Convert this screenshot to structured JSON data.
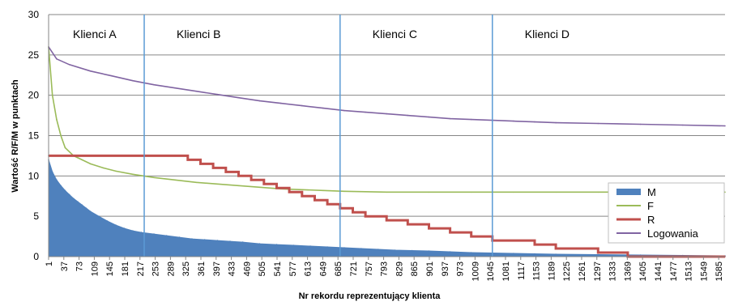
{
  "chart_data": {
    "type": "line",
    "title": "",
    "xlabel": "Nr rekordu reprezentujący klienta",
    "ylabel": "Wartość R/F/M w punktach",
    "ylim": [
      0,
      30
    ],
    "xlim": [
      1,
      1600
    ],
    "y_ticks": [
      0,
      5,
      10,
      15,
      20,
      25,
      30
    ],
    "x_ticks": [
      1,
      37,
      73,
      109,
      145,
      181,
      217,
      253,
      289,
      325,
      361,
      397,
      433,
      469,
      505,
      541,
      577,
      613,
      649,
      685,
      721,
      757,
      793,
      829,
      865,
      901,
      937,
      973,
      1009,
      1045,
      1081,
      1117,
      1153,
      1189,
      1225,
      1261,
      1297,
      1333,
      1369,
      1405,
      1441,
      1477,
      1513,
      1549,
      1585
    ],
    "grid": true,
    "legend_position": "bottom-right",
    "segments": [
      {
        "label": "Klienci A",
        "start": 1,
        "end": 227
      },
      {
        "label": "Klienci B",
        "start": 227,
        "end": 690
      },
      {
        "label": "Klienci C",
        "start": 690,
        "end": 1050
      },
      {
        "label": "Klienci D",
        "start": 1050,
        "end": 1600
      }
    ],
    "segment_boundaries": [
      227,
      690,
      1050
    ],
    "series": [
      {
        "name": "M",
        "style": "area",
        "color": "#4f81bd",
        "x": [
          1,
          10,
          20,
          30,
          40,
          50,
          60,
          70,
          80,
          90,
          100,
          120,
          140,
          160,
          180,
          200,
          220,
          250,
          280,
          310,
          340,
          370,
          400,
          430,
          460,
          500,
          540,
          580,
          620,
          660,
          700,
          740,
          780,
          820,
          860,
          900,
          950,
          1000,
          1050,
          1100,
          1150,
          1200,
          1300,
          1400,
          1500,
          1600
        ],
        "values": [
          12,
          10.5,
          9.5,
          8.8,
          8.2,
          7.7,
          7.2,
          6.8,
          6.4,
          6.0,
          5.6,
          5.0,
          4.4,
          3.9,
          3.5,
          3.2,
          3.0,
          2.8,
          2.6,
          2.4,
          2.2,
          2.1,
          2.0,
          1.9,
          1.8,
          1.6,
          1.5,
          1.4,
          1.3,
          1.2,
          1.1,
          1.0,
          0.9,
          0.8,
          0.75,
          0.7,
          0.6,
          0.5,
          0.45,
          0.4,
          0.35,
          0.3,
          0.25,
          0.2,
          0.15,
          0.1
        ]
      },
      {
        "name": "F",
        "style": "line",
        "color": "#9bbb59",
        "x": [
          1,
          10,
          20,
          30,
          40,
          60,
          80,
          100,
          130,
          160,
          200,
          250,
          300,
          350,
          400,
          450,
          500,
          550,
          600,
          650,
          700,
          800,
          900,
          1000,
          1100,
          1200,
          1300,
          1400,
          1500,
          1600
        ],
        "values": [
          26,
          20,
          17,
          15,
          13.5,
          12.5,
          12,
          11.5,
          11,
          10.6,
          10.2,
          9.8,
          9.5,
          9.2,
          9.0,
          8.8,
          8.6,
          8.4,
          8.3,
          8.2,
          8.1,
          8.0,
          8.0,
          8.0,
          8.0,
          8.0,
          8.0,
          8.0,
          8.0,
          8.0
        ]
      },
      {
        "name": "R",
        "style": "step",
        "color": "#c0504d",
        "x": [
          1,
          300,
          330,
          360,
          390,
          420,
          450,
          480,
          510,
          540,
          570,
          600,
          630,
          660,
          690,
          720,
          750,
          800,
          850,
          900,
          950,
          1000,
          1050,
          1100,
          1150,
          1200,
          1250,
          1300,
          1370,
          1600
        ],
        "values": [
          12.5,
          12.5,
          12.0,
          11.5,
          11.0,
          10.5,
          10.0,
          9.5,
          9.0,
          8.5,
          8.0,
          7.5,
          7.0,
          6.5,
          6.0,
          5.5,
          5.0,
          4.5,
          4.0,
          3.5,
          3.0,
          2.5,
          2.0,
          2.0,
          1.5,
          1.0,
          1.0,
          0.5,
          0.0,
          0.0
        ]
      },
      {
        "name": "Logowania",
        "style": "line",
        "color": "#8064a2",
        "x": [
          1,
          20,
          50,
          100,
          150,
          200,
          250,
          300,
          350,
          400,
          450,
          500,
          550,
          600,
          650,
          700,
          750,
          800,
          850,
          900,
          950,
          1000,
          1050,
          1100,
          1150,
          1200,
          1300,
          1400,
          1500,
          1600
        ],
        "values": [
          26,
          24.5,
          23.8,
          23.0,
          22.4,
          21.8,
          21.3,
          20.9,
          20.5,
          20.1,
          19.7,
          19.3,
          19.0,
          18.7,
          18.4,
          18.1,
          17.9,
          17.7,
          17.5,
          17.3,
          17.1,
          17.0,
          16.9,
          16.8,
          16.7,
          16.6,
          16.5,
          16.4,
          16.3,
          16.2
        ]
      }
    ]
  }
}
